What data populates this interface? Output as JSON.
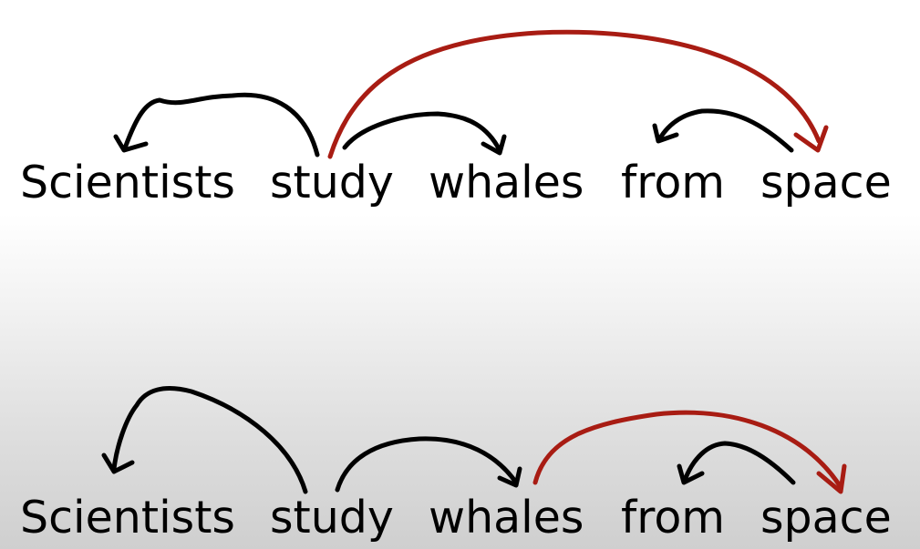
{
  "colors": {
    "black_arc": "#000000",
    "red_arc": "#a81c13"
  },
  "diagram": {
    "parses": [
      {
        "words": [
          "Scientists",
          "study",
          "whales",
          "from",
          "space"
        ],
        "arcs": [
          {
            "from": "study",
            "to": "Scientists",
            "color": "black"
          },
          {
            "from": "study",
            "to": "whales",
            "color": "black"
          },
          {
            "from": "study",
            "to": "space",
            "color": "red"
          },
          {
            "from": "space",
            "to": "from",
            "color": "black"
          }
        ]
      },
      {
        "words": [
          "Scientists",
          "study",
          "whales",
          "from",
          "space"
        ],
        "arcs": [
          {
            "from": "study",
            "to": "Scientists",
            "color": "black"
          },
          {
            "from": "study",
            "to": "whales",
            "color": "black"
          },
          {
            "from": "whales",
            "to": "space",
            "color": "red"
          },
          {
            "from": "space",
            "to": "from",
            "color": "black"
          }
        ]
      }
    ]
  }
}
